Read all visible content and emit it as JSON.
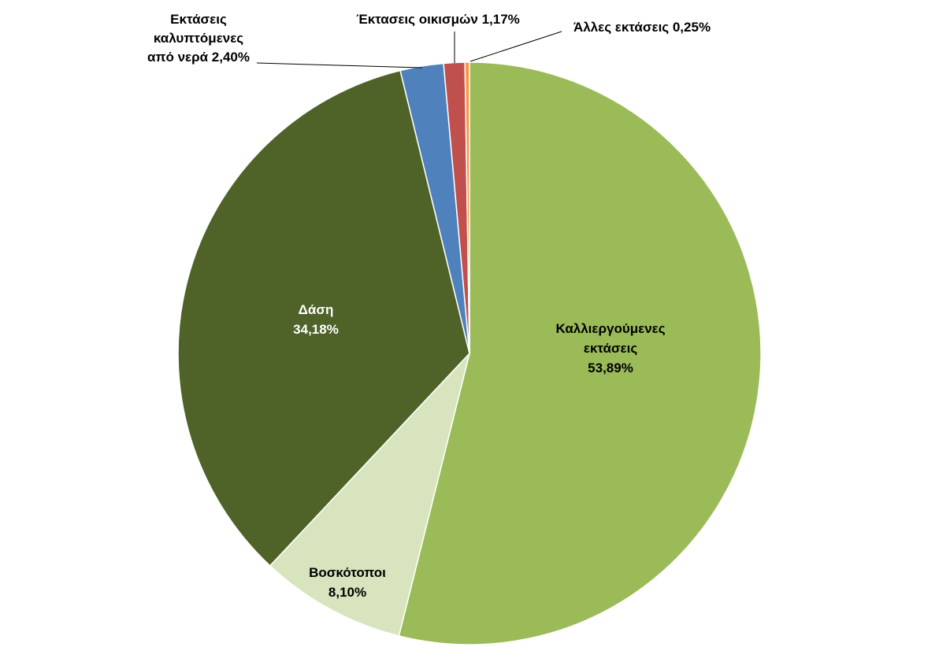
{
  "chart_data": {
    "type": "pie",
    "title": "",
    "start": "12 o'clock",
    "direction": "clockwise",
    "series": [
      {
        "name": "",
        "slices": [
          {
            "id": "cultivated",
            "label_lines": [
              "Καλλιεργούμενες",
              "εκτάσεις",
              "53,89%"
            ],
            "value": 53.89,
            "color": "#9BBB59",
            "label_color": "#000000"
          },
          {
            "id": "pastures",
            "label_lines": [
              "Βοσκότοποι",
              "8,10%"
            ],
            "value": 8.1,
            "color": "#D7E4BD",
            "label_color": "#000000"
          },
          {
            "id": "forests",
            "label_lines": [
              "Δάση",
              "34,18%"
            ],
            "value": 34.18,
            "color": "#4F6228",
            "label_color": "#ffffff"
          },
          {
            "id": "water",
            "label_lines": [
              "Εκτάσεις",
              "καλυπτόμενες",
              "από νερά 2,40%"
            ],
            "value": 2.4,
            "color": "#4F81BD",
            "label_color": "#000000"
          },
          {
            "id": "settlements",
            "label_lines": [
              "Έκτασεις οικισμών 1,17%"
            ],
            "value": 1.17,
            "color": "#C0504D",
            "label_color": "#000000"
          },
          {
            "id": "other",
            "label_lines": [
              "Άλλες εκτάσεις 0,25%"
            ],
            "value": 0.25,
            "color": "#F79646",
            "label_color": "#000000"
          }
        ]
      }
    ]
  }
}
